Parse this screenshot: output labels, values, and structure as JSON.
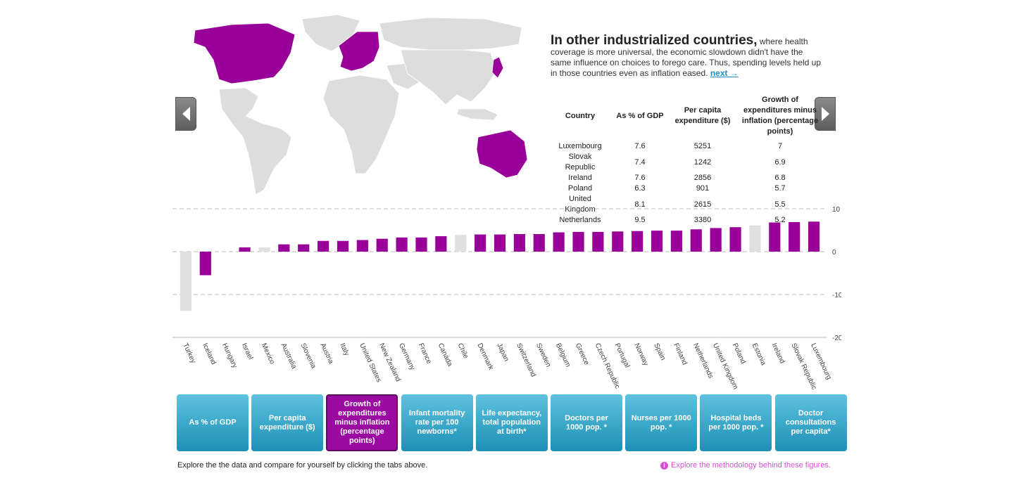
{
  "intro": {
    "headline": "In other industrialized countries,",
    "body": " where health coverage is more universal, the economic slowdown didn't have the same influence on choices to forego care. Thus, spending levels held up in those countries even as inflation eased.",
    "next_label": "next →"
  },
  "table": {
    "headers": [
      "Country",
      "As % of GDP",
      "Per capita expenditure ($)",
      "Growth of expenditures minus inflation (percentage points)"
    ],
    "rows": [
      [
        "Luxembourg",
        "7.6",
        "5251",
        "7"
      ],
      [
        "Slovak Republic",
        "7.4",
        "1242",
        "6.9"
      ],
      [
        "Ireland",
        "7.6",
        "2856",
        "6.8"
      ],
      [
        "Poland",
        "6.3",
        "901",
        "5.7"
      ],
      [
        "United Kingdom",
        "8.1",
        "2615",
        "5.5"
      ],
      [
        "Netherlands",
        "9.5",
        "3380",
        "5.2"
      ]
    ]
  },
  "colors": {
    "highlight": "#990099",
    "muted": "#e0e0e0",
    "map_land": "#dddddd",
    "tab": "#2a9cc4",
    "tab_active": "#9a0aa0"
  },
  "icons": {
    "prev": "chevron-left-icon",
    "next": "chevron-right-icon",
    "info": "info-icon"
  },
  "chart_data": {
    "type": "bar",
    "categories": [
      "Turkey",
      "Iceland",
      "Hungary",
      "Israel",
      "Mexico",
      "Australia",
      "Slovenia",
      "Austria",
      "Italy",
      "United States",
      "New Zealand",
      "Germany",
      "France",
      "Canada",
      "Chile",
      "Denmark",
      "Japan",
      "Switzerland",
      "Sweden",
      "Belgium",
      "Greece",
      "Czech Republic",
      "Portugal",
      "Norway",
      "Spain",
      "Finland",
      "Netherlands",
      "United Kingdom",
      "Poland",
      "Estonia",
      "Ireland",
      "Slovak Republic",
      "Luxembourg"
    ],
    "values": [
      -13.8,
      -5.5,
      0,
      1,
      1,
      1.7,
      1.7,
      2.5,
      2.5,
      2.7,
      3,
      3.3,
      3.3,
      3.6,
      3.9,
      4,
      4,
      4.1,
      4.1,
      4.5,
      4.6,
      4.6,
      4.7,
      4.8,
      4.9,
      4.9,
      5.2,
      5.5,
      5.7,
      6.1,
      6.8,
      6.9,
      7
    ],
    "highlighted": [
      false,
      true,
      false,
      true,
      false,
      true,
      true,
      true,
      true,
      true,
      true,
      true,
      true,
      true,
      false,
      true,
      true,
      true,
      true,
      true,
      true,
      true,
      true,
      true,
      true,
      true,
      true,
      true,
      true,
      false,
      true,
      true,
      true
    ],
    "yticks": [
      10,
      0,
      -10,
      -20
    ],
    "ylim": [
      -20,
      10
    ],
    "grid": true
  },
  "tabs": [
    {
      "label": "As % of GDP",
      "active": false
    },
    {
      "label": "Per capita expenditure ($)",
      "active": false
    },
    {
      "label": "Growth of expenditures minus inflation (percentage points)",
      "active": true
    },
    {
      "label": "Infant mortality rate per 100 newborns*",
      "active": false
    },
    {
      "label": "Life expectancy, total population at birth*",
      "active": false
    },
    {
      "label": "Doctors per 1000 pop. *",
      "active": false
    },
    {
      "label": "Nurses per 1000 pop. *",
      "active": false
    },
    {
      "label": "Hospital beds per 1000 pop. *",
      "active": false
    },
    {
      "label": "Doctor consultations per capita*",
      "active": false
    }
  ],
  "footer": {
    "hint": "Explore the the data and compare for yourself by clicking the tabs above.",
    "methodology": "Explore the methodology behind these figures."
  }
}
